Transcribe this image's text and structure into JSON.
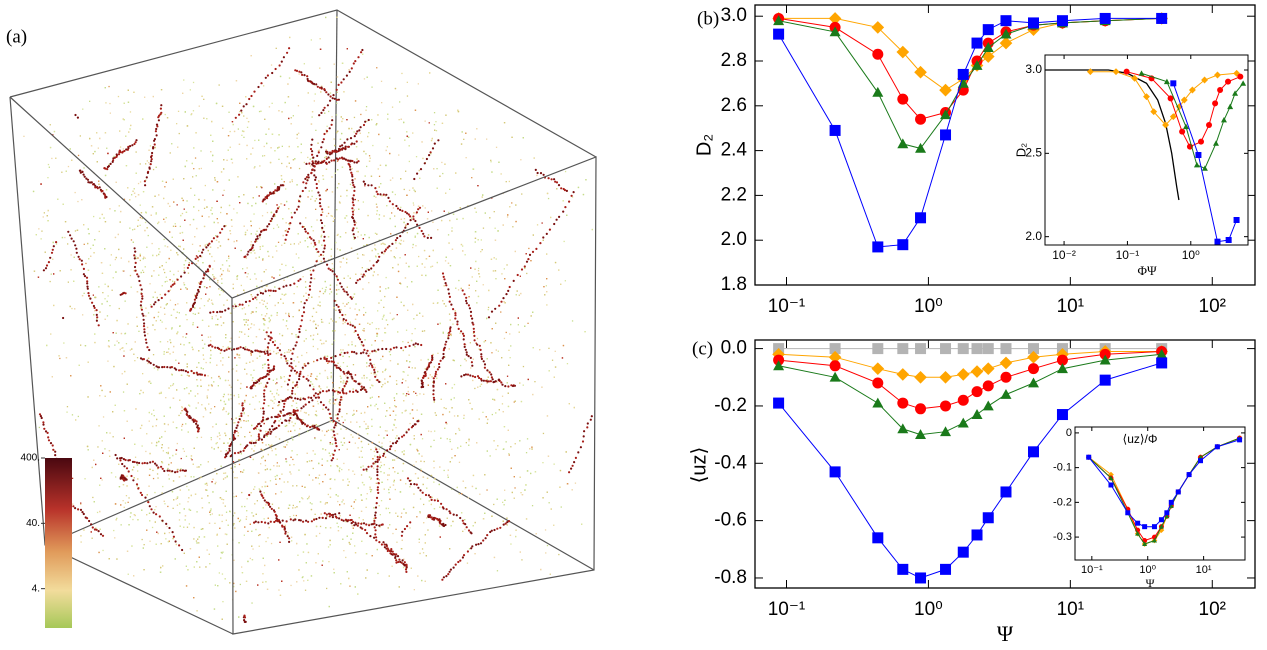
{
  "panel_a": {
    "label": "(a)",
    "colorbar": {
      "log": true,
      "lim": [
        1,
        400
      ],
      "ticks": [
        {
          "value": 4,
          "label": "4."
        },
        {
          "value": 40,
          "label": "40."
        },
        {
          "value": 400,
          "label": "400."
        }
      ]
    }
  },
  "chart_data": [
    {
      "type": "line",
      "panel_label": "(b)",
      "ylabel": "D₂",
      "xlog": true,
      "xlim": [
        0.06,
        200
      ],
      "ylim": [
        1.8,
        3.05
      ],
      "xticks": [
        {
          "value": 0.1,
          "label": "10⁻¹"
        },
        {
          "value": 1,
          "label": "10⁰"
        },
        {
          "value": 10,
          "label": "10¹"
        },
        {
          "value": 100,
          "label": "10²"
        }
      ],
      "yticks": [
        1.8,
        {
          "value": 2,
          "label": "2.0"
        },
        2.2,
        2.4,
        2.6,
        2.8,
        {
          "value": 3,
          "label": "3.0"
        }
      ],
      "x": [
        0.088,
        0.22,
        0.44,
        0.66,
        0.88,
        1.32,
        1.76,
        2.2,
        2.64,
        3.52,
        5.5,
        8.8,
        17.6,
        44
      ],
      "series": [
        {
          "color": "#ffa500",
          "marker": "diamond",
          "values": [
            2.99,
            2.99,
            2.95,
            2.84,
            2.75,
            2.67,
            2.72,
            2.78,
            2.82,
            2.88,
            2.94,
            2.97,
            2.98,
            2.99
          ]
        },
        {
          "color": "#ff0000",
          "marker": "circle",
          "values": [
            2.99,
            2.95,
            2.83,
            2.63,
            2.54,
            2.57,
            2.67,
            2.8,
            2.88,
            2.93,
            2.96,
            2.97,
            2.98,
            2.99
          ]
        },
        {
          "color": "#1a7a1a",
          "marker": "triangle",
          "values": [
            2.98,
            2.93,
            2.66,
            2.43,
            2.41,
            2.56,
            2.7,
            2.78,
            2.86,
            2.92,
            2.96,
            2.97,
            2.98,
            2.99
          ]
        },
        {
          "color": "#0000ff",
          "marker": "square",
          "values": [
            2.92,
            2.49,
            1.97,
            1.98,
            2.1,
            2.47,
            2.74,
            2.88,
            2.94,
            2.98,
            2.97,
            2.98,
            2.99,
            2.99
          ]
        }
      ]
    },
    {
      "type": "line",
      "ylabel": "D₂",
      "xlabel": "ΦΨ",
      "xlog": true,
      "xlim": [
        0.005,
        8
      ],
      "ylim": [
        1.95,
        3.09
      ],
      "xticks": [
        {
          "value": 0.01,
          "label": "10⁻²"
        },
        {
          "value": 0.1,
          "label": "10⁻¹"
        },
        {
          "value": 1,
          "label": "10⁰"
        }
      ],
      "yticks": [
        {
          "value": 2,
          "label": "2.0"
        },
        2.5,
        {
          "value": 3,
          "label": "3.0"
        }
      ],
      "series": [
        {
          "color": "#000000",
          "marker": "none",
          "x": [
            0.005,
            0.05,
            0.1,
            0.2,
            0.3,
            0.4,
            0.5,
            0.6,
            0.65
          ],
          "values": [
            3.0,
            3.0,
            2.98,
            2.92,
            2.82,
            2.68,
            2.5,
            2.3,
            2.22
          ]
        },
        {
          "color": "#ffa500",
          "marker": "diamond",
          "x": [
            0.026,
            0.066,
            0.13,
            0.2,
            0.26,
            0.4,
            0.53,
            0.66,
            0.79,
            1.06,
            1.65,
            2.64,
            5.3
          ],
          "values": [
            2.99,
            2.99,
            2.95,
            2.84,
            2.75,
            2.67,
            2.72,
            2.78,
            2.82,
            2.88,
            2.94,
            2.97,
            2.98
          ]
        },
        {
          "color": "#ff0000",
          "marker": "circle",
          "x": [
            0.097,
            0.24,
            0.48,
            0.73,
            0.97,
            1.45,
            1.94,
            2.42,
            2.9,
            3.87,
            6.05
          ],
          "values": [
            2.99,
            2.95,
            2.83,
            2.63,
            2.54,
            2.57,
            2.67,
            2.8,
            2.88,
            2.93,
            2.96
          ]
        },
        {
          "color": "#1a7a1a",
          "marker": "triangle",
          "x": [
            0.167,
            0.42,
            0.84,
            1.25,
            1.67,
            2.5,
            3.34,
            4.18,
            5.0,
            6.7
          ],
          "values": [
            2.98,
            2.93,
            2.66,
            2.43,
            2.41,
            2.56,
            2.7,
            2.78,
            2.86,
            2.92
          ]
        },
        {
          "color": "#0000ff",
          "marker": "square",
          "x": [
            0.53,
            1.32,
            2.64,
            3.96,
            5.28
          ],
          "values": [
            2.92,
            2.49,
            1.97,
            1.98,
            2.1
          ]
        }
      ]
    },
    {
      "type": "line",
      "panel_label": "(c)",
      "ylabel": "⟨uz⟩",
      "xlabel": "Ψ",
      "xlog": true,
      "xlim": [
        0.06,
        200
      ],
      "ylim": [
        -0.835,
        0.03
      ],
      "xticks": [
        {
          "value": 0.1,
          "label": "10⁻¹"
        },
        {
          "value": 1,
          "label": "10⁰"
        },
        {
          "value": 10,
          "label": "10¹"
        },
        {
          "value": 100,
          "label": "10²"
        }
      ],
      "yticks": [
        -0.8,
        -0.6,
        -0.4,
        -0.2,
        {
          "value": 0,
          "label": "0.0"
        }
      ],
      "x": [
        0.088,
        0.22,
        0.44,
        0.66,
        0.88,
        1.32,
        1.76,
        2.2,
        2.64,
        3.52,
        5.5,
        8.8,
        17.6,
        44
      ],
      "series": [
        {
          "color": "#b4b4b4",
          "marker": "square",
          "values": [
            0,
            0,
            0,
            0,
            0,
            0,
            0,
            0,
            0,
            0,
            0,
            0,
            0,
            0
          ]
        },
        {
          "color": "#ffa500",
          "marker": "diamond",
          "values": [
            -0.02,
            -0.03,
            -0.07,
            -0.09,
            -0.1,
            -0.1,
            -0.09,
            -0.08,
            -0.07,
            -0.05,
            -0.03,
            -0.02,
            -0.01,
            -0.01
          ]
        },
        {
          "color": "#ff0000",
          "marker": "circle",
          "values": [
            -0.04,
            -0.06,
            -0.12,
            -0.19,
            -0.21,
            -0.2,
            -0.18,
            -0.15,
            -0.13,
            -0.1,
            -0.07,
            -0.04,
            -0.02,
            -0.01
          ]
        },
        {
          "color": "#1a7a1a",
          "marker": "triangle",
          "values": [
            -0.06,
            -0.1,
            -0.19,
            -0.28,
            -0.3,
            -0.29,
            -0.26,
            -0.23,
            -0.2,
            -0.16,
            -0.12,
            -0.07,
            -0.04,
            -0.02
          ]
        },
        {
          "color": "#0000ff",
          "marker": "square",
          "values": [
            -0.19,
            -0.43,
            -0.66,
            -0.77,
            -0.8,
            -0.77,
            -0.71,
            -0.65,
            -0.59,
            -0.5,
            -0.36,
            -0.23,
            -0.11,
            -0.05
          ]
        }
      ]
    },
    {
      "type": "line",
      "ylabel": "⟨uz⟩/Φ",
      "xlabel": "Ψ",
      "xlog": true,
      "xlim": [
        0.05,
        55
      ],
      "ylim": [
        -0.366,
        0.017
      ],
      "xticks": [
        {
          "value": 0.1,
          "label": "10⁻¹"
        },
        {
          "value": 1,
          "label": "10⁰"
        },
        {
          "value": 10,
          "label": "10¹"
        }
      ],
      "yticks": [
        -0.3,
        -0.2,
        -0.1,
        0
      ],
      "x": [
        0.088,
        0.22,
        0.44,
        0.66,
        0.88,
        1.32,
        1.76,
        2.2,
        2.64,
        3.52,
        5.5,
        8.8,
        17.6,
        44
      ],
      "series": [
        {
          "color": "#ffa500",
          "marker": "diamond",
          "values": [
            -0.07,
            -0.12,
            -0.22,
            -0.29,
            -0.32,
            -0.31,
            -0.28,
            -0.24,
            -0.21,
            -0.17,
            -0.12,
            -0.07,
            -0.04,
            -0.015
          ]
        },
        {
          "color": "#ff0000",
          "marker": "circle",
          "values": [
            -0.07,
            -0.13,
            -0.22,
            -0.28,
            -0.31,
            -0.3,
            -0.27,
            -0.24,
            -0.21,
            -0.17,
            -0.12,
            -0.07,
            -0.04,
            -0.015
          ]
        },
        {
          "color": "#1a7a1a",
          "marker": "triangle",
          "values": [
            -0.07,
            -0.13,
            -0.23,
            -0.29,
            -0.32,
            -0.31,
            -0.27,
            -0.24,
            -0.21,
            -0.17,
            -0.12,
            -0.07,
            -0.04,
            -0.015
          ]
        },
        {
          "color": "#0000ff",
          "marker": "square",
          "values": [
            -0.07,
            -0.15,
            -0.23,
            -0.26,
            -0.27,
            -0.27,
            -0.25,
            -0.23,
            -0.2,
            -0.17,
            -0.12,
            -0.08,
            -0.04,
            -0.02
          ]
        }
      ]
    }
  ]
}
